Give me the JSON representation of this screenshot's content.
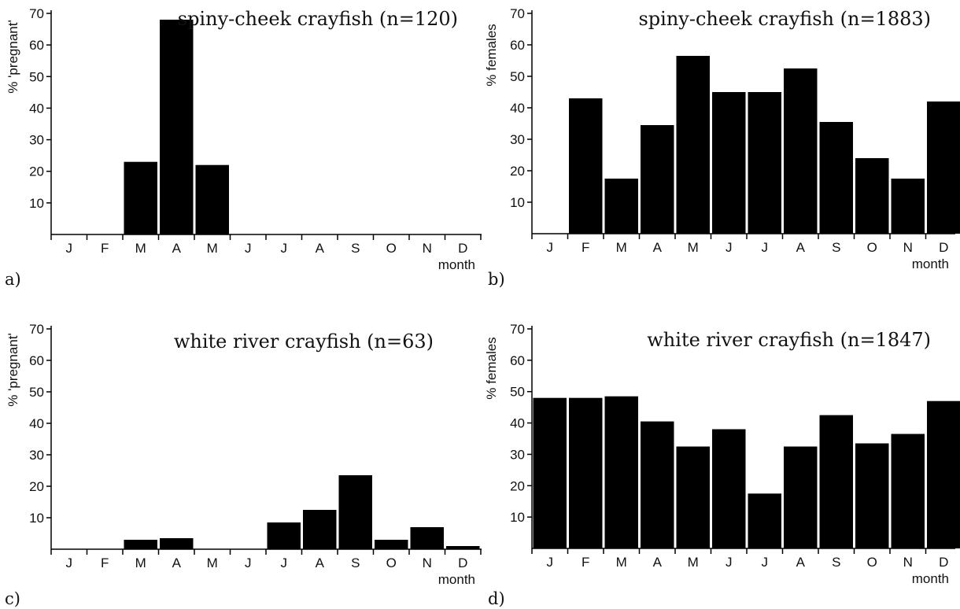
{
  "chart_data": [
    {
      "type": "bar",
      "title": "spiny-cheek crayfish (n=120)",
      "panel_label": "a)",
      "ylabel": "% 'pregnant'",
      "xlabel": "month",
      "categories": [
        "J",
        "F",
        "M",
        "A",
        "M",
        "J",
        "J",
        "A",
        "S",
        "O",
        "N",
        "D"
      ],
      "values": [
        0,
        0,
        23,
        68,
        22,
        0,
        0,
        0,
        0,
        0,
        0,
        0
      ],
      "ylim": [
        0,
        70
      ],
      "yticks": [
        10,
        20,
        30,
        40,
        50,
        60,
        70
      ],
      "grid": false,
      "bar_color": "#000000"
    },
    {
      "type": "bar",
      "title": "spiny-cheek crayfish (n=1883)",
      "panel_label": "b)",
      "ylabel": "% females",
      "xlabel": "month",
      "categories": [
        "J",
        "F",
        "M",
        "A",
        "M",
        "J",
        "J",
        "A",
        "S",
        "O",
        "N",
        "D"
      ],
      "values": [
        0,
        43,
        17.5,
        34.5,
        56.5,
        45,
        45,
        52.5,
        35.5,
        24,
        17.5,
        42
      ],
      "ylim": [
        0,
        70
      ],
      "yticks": [
        10,
        20,
        30,
        40,
        50,
        60,
        70
      ],
      "grid": false,
      "bar_color": "#000000"
    },
    {
      "type": "bar",
      "title": "white river crayfish (n=63)",
      "panel_label": "c)",
      "ylabel": "% 'pregnant'",
      "xlabel": "month",
      "categories": [
        "J",
        "F",
        "M",
        "A",
        "M",
        "J",
        "J",
        "A",
        "S",
        "O",
        "N",
        "D"
      ],
      "values": [
        0,
        0,
        3,
        3.5,
        0,
        0,
        8.5,
        12.5,
        23.5,
        3,
        7,
        1
      ],
      "ylim": [
        0,
        70
      ],
      "yticks": [
        10,
        20,
        30,
        40,
        50,
        60,
        70
      ],
      "grid": false,
      "bar_color": "#000000"
    },
    {
      "type": "bar",
      "title": "white river crayfish (n=1847)",
      "panel_label": "d)",
      "ylabel": "% females",
      "xlabel": "month",
      "categories": [
        "J",
        "F",
        "M",
        "A",
        "M",
        "J",
        "J",
        "A",
        "S",
        "O",
        "N",
        "D"
      ],
      "values": [
        48,
        48,
        48.5,
        40.5,
        32.5,
        38,
        17.5,
        32.5,
        42.5,
        33.5,
        36.5,
        47
      ],
      "ylim": [
        0,
        70
      ],
      "yticks": [
        10,
        20,
        30,
        40,
        50,
        60,
        70
      ],
      "grid": false,
      "bar_color": "#000000"
    }
  ]
}
